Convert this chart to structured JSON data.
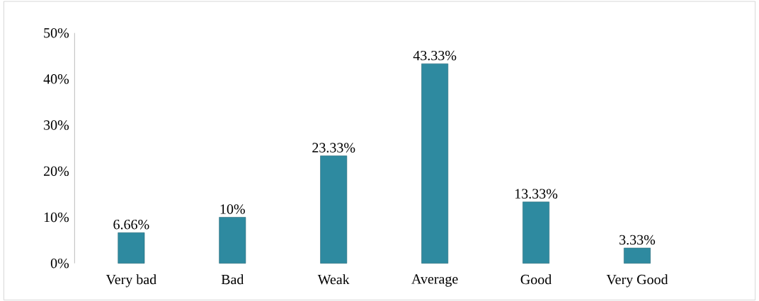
{
  "chart_data": {
    "type": "bar",
    "categories": [
      "Very bad",
      "Bad",
      "Weak",
      "Average",
      "Good",
      "Very Good"
    ],
    "values": [
      6.66,
      10,
      23.33,
      43.33,
      13.33,
      3.33
    ],
    "value_labels": [
      "6.66%",
      "10%",
      "23.33%",
      "43.33%",
      "13.33%",
      "3.33%"
    ],
    "color": "#2e8aa0",
    "ylim": [
      0,
      50
    ],
    "yticks": [
      {
        "value": 0,
        "label": "0%"
      },
      {
        "value": 10,
        "label": "10%"
      },
      {
        "value": 20,
        "label": "20%"
      },
      {
        "value": 30,
        "label": "30%"
      },
      {
        "value": 40,
        "label": "40%"
      },
      {
        "value": 50,
        "label": "50%"
      }
    ]
  }
}
